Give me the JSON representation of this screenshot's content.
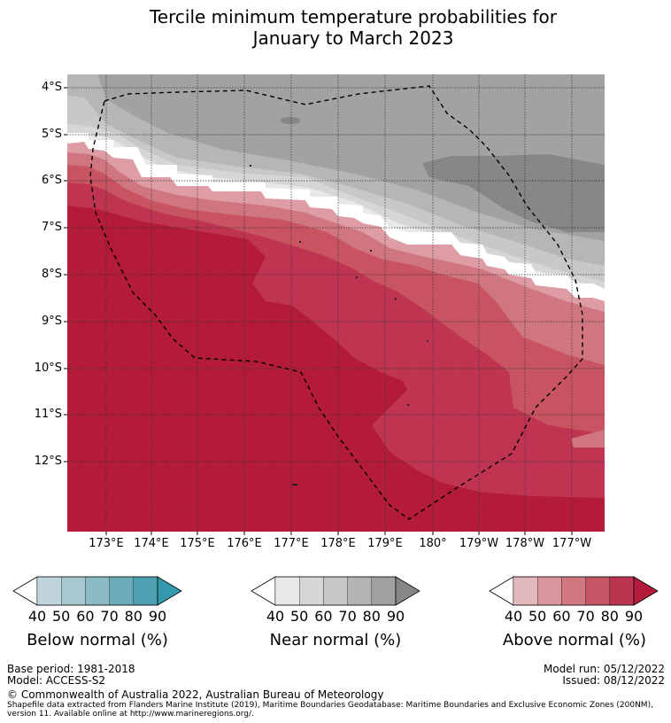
{
  "title": {
    "line1": "Tercile minimum temperature probabilities for",
    "line2": "January to March 2023"
  },
  "map": {
    "lat_labels": [
      "4°S",
      "5°S",
      "6°S",
      "7°S",
      "8°S",
      "9°S",
      "10°S",
      "11°S",
      "12°S"
    ],
    "lon_labels": [
      "173°E",
      "174°E",
      "175°E",
      "176°E",
      "177°E",
      "178°E",
      "179°E",
      "180°",
      "179°W",
      "178°W",
      "177°W"
    ],
    "boundary_style": "dashed black line (EEZ)",
    "colors": {
      "above_90": "#b31b38",
      "above_80": "#bf3450",
      "above_70": "#c95461",
      "above_60": "#d07680",
      "above_50": "#de9da5",
      "white_band": "#ffffff",
      "near_40": "#e8e8e8",
      "near_50": "#d6d6d6",
      "near_60": "#c8c8c8",
      "near_70": "#b6b6b6",
      "near_80": "#a2a2a2",
      "near_90": "#878787"
    }
  },
  "colorbars": [
    {
      "label": "Below normal (%)",
      "ticks": [
        "40",
        "50",
        "60",
        "70",
        "80",
        "90"
      ],
      "colors": [
        "#ffffff",
        "#bfd4db",
        "#a6c8d0",
        "#8cbac5",
        "#6cacba",
        "#4e9fb0",
        "#3599ad"
      ]
    },
    {
      "label": "Near normal (%)",
      "ticks": [
        "40",
        "50",
        "60",
        "70",
        "80",
        "90"
      ],
      "colors": [
        "#ffffff",
        "#e8e8e8",
        "#d6d6d6",
        "#c6c6c6",
        "#b4b4b4",
        "#a0a0a0",
        "#878787"
      ]
    },
    {
      "label": "Above normal (%)",
      "ticks": [
        "40",
        "50",
        "60",
        "70",
        "80",
        "90"
      ],
      "colors": [
        "#ffffff",
        "#e2b8bf",
        "#d8959e",
        "#d0777f",
        "#c45564",
        "#bc3550",
        "#b31b3c"
      ]
    }
  ],
  "footer": {
    "base_period": "Base period: 1981-2018",
    "model": "Model: ACCESS-S2",
    "model_run": "Model run: 05/12/2022",
    "issued": "Issued: 08/12/2022",
    "copyright": "© Commonwealth of Australia 2022, Australian Bureau of Meteorology",
    "source_line1": "Shapefile data extracted from Flanders Marine Institute (2019), Maritime Boundaries Geodatabase: Maritime Boundaries and Exclusive Economic Zones (200NM),",
    "source_line2": "version 11. Available online at http://www.marineregions.org/."
  }
}
